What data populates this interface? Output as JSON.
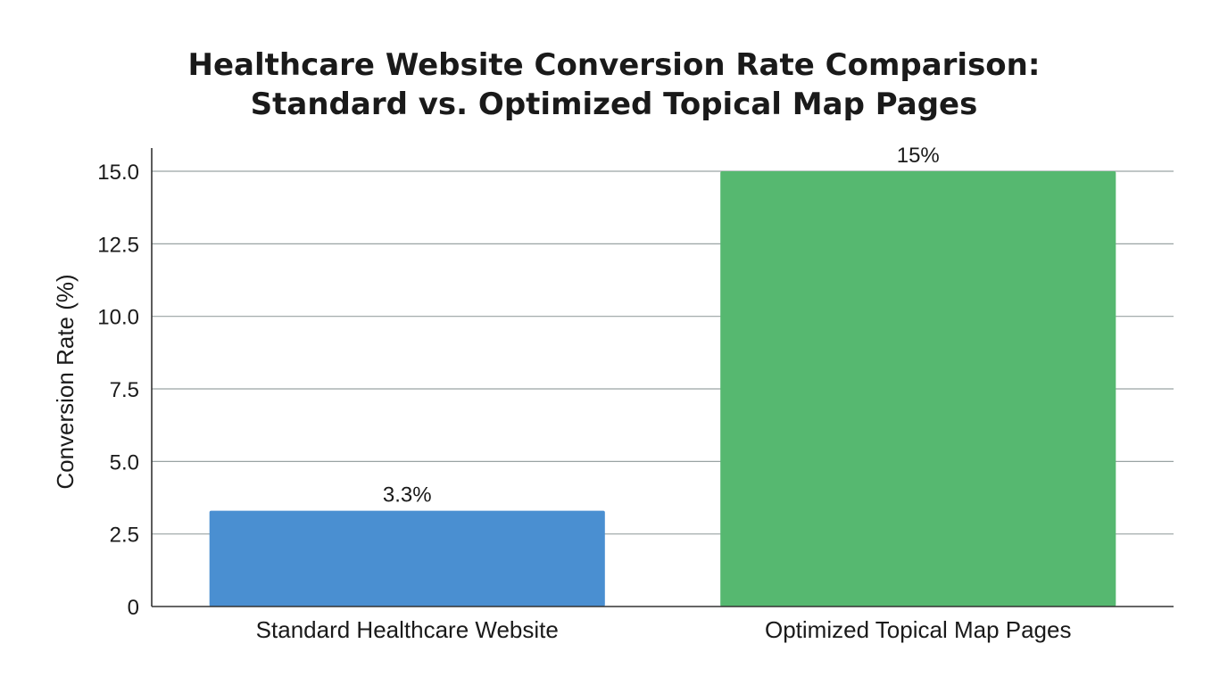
{
  "chart_data": {
    "type": "bar",
    "title_lines": [
      "Healthcare Website Conversion Rate Comparison:",
      "Standard vs. Optimized Topical Map Pages"
    ],
    "xlabel": "",
    "ylabel": "Conversion Rate (%)",
    "categories": [
      "Standard Healthcare Website",
      "Optimized Topical Map Pages"
    ],
    "values": [
      3.3,
      15
    ],
    "data_labels": [
      "3.3%",
      "15%"
    ],
    "bar_colors": [
      "#4a8fd1",
      "#56b870"
    ],
    "ylim": [
      0,
      15.8
    ],
    "yticks": [
      0,
      2.5,
      5.0,
      7.5,
      10.0,
      12.5,
      15.0
    ],
    "ytick_labels": [
      "0",
      "2.5",
      "5.0",
      "7.5",
      "10.0",
      "12.5",
      "15.0"
    ],
    "grid": true,
    "legend": "none"
  }
}
